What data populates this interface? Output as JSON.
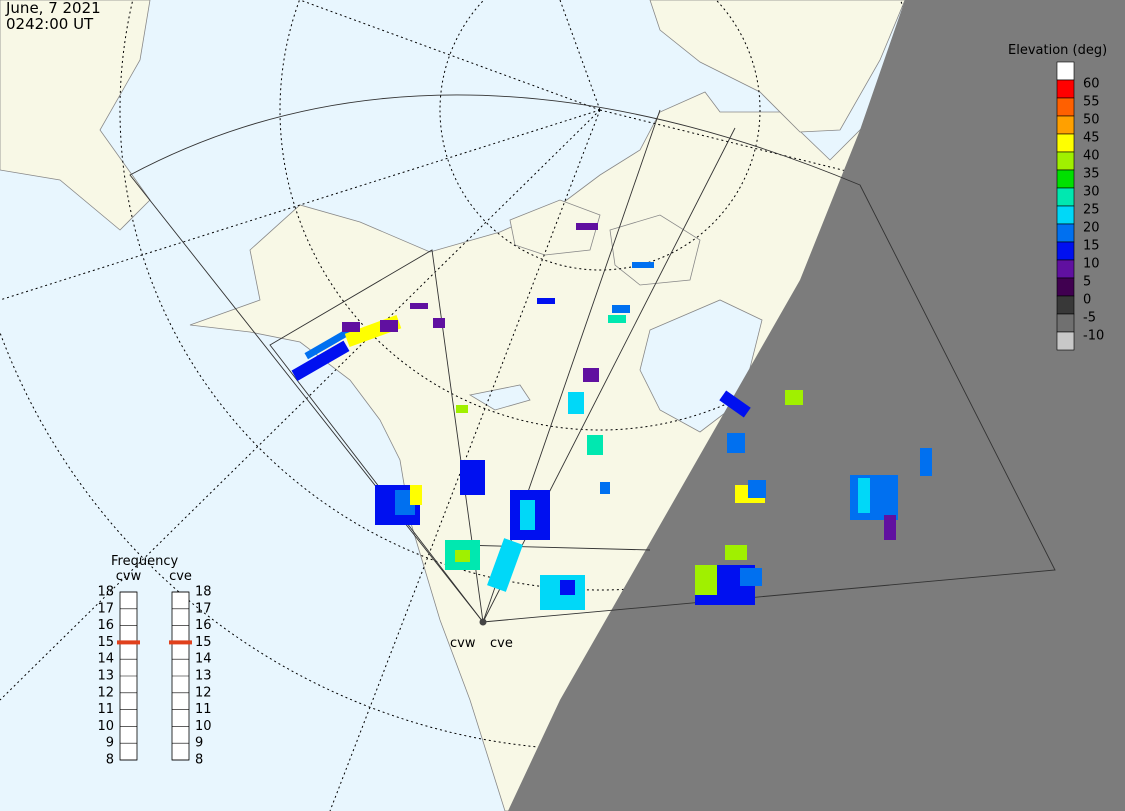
{
  "header": {
    "date": "June, 7 2021",
    "time": "0242:00 UT"
  },
  "elevation_scale": {
    "title": "Elevation (deg)",
    "top_color": "#ffffff",
    "levels": [
      {
        "value": 60,
        "color": "#ff0000"
      },
      {
        "value": 55,
        "color": "#ff6000"
      },
      {
        "value": 50,
        "color": "#ffa000"
      },
      {
        "value": 45,
        "color": "#ffff00"
      },
      {
        "value": 40,
        "color": "#a0f000"
      },
      {
        "value": 35,
        "color": "#00e000"
      },
      {
        "value": 30,
        "color": "#00e8b0"
      },
      {
        "value": 25,
        "color": "#00d8f8"
      },
      {
        "value": 20,
        "color": "#0070f0"
      },
      {
        "value": 15,
        "color": "#0010f0"
      },
      {
        "value": 10,
        "color": "#6010a0"
      },
      {
        "value": 5,
        "color": "#400050"
      },
      {
        "value": 0,
        "color": "#383838"
      },
      {
        "value": -5,
        "color": "#707070"
      },
      {
        "value": -10,
        "color": "#c8c8c8"
      }
    ]
  },
  "frequency": {
    "title": "Frequency",
    "ticks": [
      18,
      17,
      16,
      15,
      14,
      13,
      12,
      11,
      10,
      9,
      8
    ],
    "marker_color": "#e0401c",
    "radars": [
      {
        "name": "cvw",
        "value": 15
      },
      {
        "name": "cve",
        "value": 15
      }
    ]
  },
  "stations": [
    "cvw",
    "cve"
  ]
}
